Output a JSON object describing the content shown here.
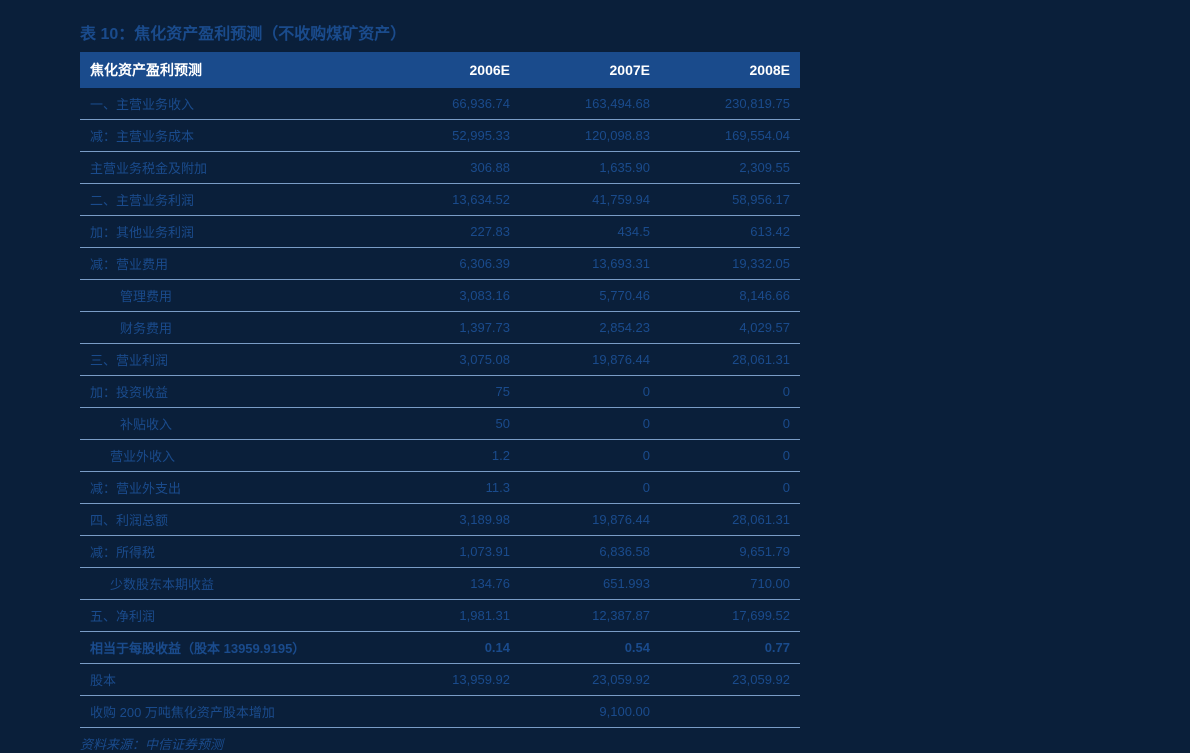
{
  "title": "表 10：焦化资产盈利预测（不收购煤矿资产）",
  "header": {
    "label": "焦化资产盈利预测",
    "y1": "2006E",
    "y2": "2007E",
    "y3": "2008E"
  },
  "rows": [
    {
      "label": "一、主营业务收入",
      "v1": "66,936.74",
      "v2": "163,494.68",
      "v3": "230,819.75",
      "indent": 0,
      "bold": false
    },
    {
      "label": "减：主营业务成本",
      "v1": "52,995.33",
      "v2": "120,098.83",
      "v3": "169,554.04",
      "indent": 0,
      "bold": false
    },
    {
      "label": "主营业务税金及附加",
      "v1": "306.88",
      "v2": "1,635.90",
      "v3": "2,309.55",
      "indent": 0,
      "bold": false
    },
    {
      "label": "二、主营业务利润",
      "v1": "13,634.52",
      "v2": "41,759.94",
      "v3": "58,956.17",
      "indent": 0,
      "bold": false
    },
    {
      "label": "加：其他业务利润",
      "v1": "227.83",
      "v2": "434.5",
      "v3": "613.42",
      "indent": 0,
      "bold": false
    },
    {
      "label": "减：营业费用",
      "v1": "6,306.39",
      "v2": "13,693.31",
      "v3": "19,332.05",
      "indent": 0,
      "bold": false
    },
    {
      "label": "管理费用",
      "v1": "3,083.16",
      "v2": "5,770.46",
      "v3": "8,146.66",
      "indent": 1,
      "bold": false
    },
    {
      "label": "财务费用",
      "v1": "1,397.73",
      "v2": "2,854.23",
      "v3": "4,029.57",
      "indent": 1,
      "bold": false
    },
    {
      "label": "三、营业利润",
      "v1": "3,075.08",
      "v2": "19,876.44",
      "v3": "28,061.31",
      "indent": 0,
      "bold": false
    },
    {
      "label": "加：投资收益",
      "v1": "75",
      "v2": "0",
      "v3": "0",
      "indent": 0,
      "bold": false
    },
    {
      "label": "补贴收入",
      "v1": "50",
      "v2": "0",
      "v3": "0",
      "indent": 1,
      "bold": false
    },
    {
      "label": "营业外收入",
      "v1": "1.2",
      "v2": "0",
      "v3": "0",
      "indent": 2,
      "bold": false
    },
    {
      "label": "减：营业外支出",
      "v1": "11.3",
      "v2": "0",
      "v3": "0",
      "indent": 0,
      "bold": false
    },
    {
      "label": "四、利润总额",
      "v1": "3,189.98",
      "v2": "19,876.44",
      "v3": "28,061.31",
      "indent": 0,
      "bold": false
    },
    {
      "label": "减：所得税",
      "v1": "1,073.91",
      "v2": "6,836.58",
      "v3": "9,651.79",
      "indent": 0,
      "bold": false
    },
    {
      "label": "少数股东本期收益",
      "v1": "134.76",
      "v2": "651.993",
      "v3": "710.00",
      "indent": 2,
      "bold": false
    },
    {
      "label": "五、净利润",
      "v1": "1,981.31",
      "v2": "12,387.87",
      "v3": "17,699.52",
      "indent": 0,
      "bold": false
    },
    {
      "label": "相当于每股收益（股本 13959.9195）",
      "v1": "0.14",
      "v2": "0.54",
      "v3": "0.77",
      "indent": 0,
      "bold": true
    },
    {
      "label": "股本",
      "v1": "13,959.92",
      "v2": "23,059.92",
      "v3": "23,059.92",
      "indent": 0,
      "bold": false
    },
    {
      "label": "收购 200 万吨焦化资产股本增加",
      "v1": "",
      "v2": "9,100.00",
      "v3": "",
      "indent": 0,
      "bold": false
    }
  ],
  "source": "资料来源：中信证券预测",
  "style": {
    "background_color": "#0a1f3a",
    "header_bg": "#1a4b8c",
    "header_text": "#ffffff",
    "cell_text": "#1a4b8c",
    "border_color": "#7a9cc6",
    "title_fontsize": 16,
    "header_fontsize": 14,
    "cell_fontsize": 13
  }
}
